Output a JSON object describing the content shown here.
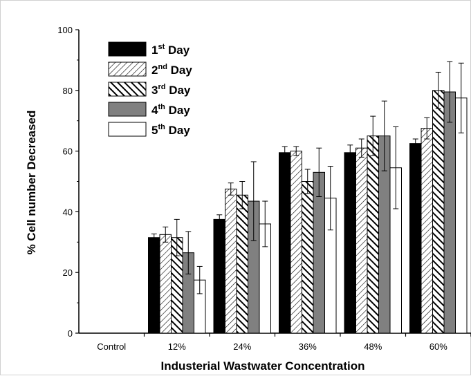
{
  "chart_data": {
    "type": "bar",
    "title": "",
    "xlabel": "Industerial Wastwater Concentration",
    "ylabel": "% Cell number Decreased",
    "ylim": [
      0,
      100
    ],
    "yticks": [
      "0",
      "20",
      "40",
      "60",
      "80",
      "100"
    ],
    "categories": [
      "Control",
      "12%",
      "24%",
      "36%",
      "48%",
      "60%"
    ],
    "legend_position": "top-left",
    "grid": false,
    "series": [
      {
        "name_base": "1",
        "name_sup": "st",
        "name_rest": " Day",
        "fill": "black",
        "values": [
          0,
          31.5,
          37.5,
          59.5,
          59.5,
          62.5
        ],
        "errors": [
          0,
          1.2,
          1.5,
          2.0,
          2.5,
          1.5
        ]
      },
      {
        "name_base": "2",
        "name_sup": "nd",
        "name_rest": " Day",
        "fill": "hatch-light",
        "values": [
          0,
          32.5,
          47.5,
          60,
          61,
          67.5
        ],
        "errors": [
          0,
          2.5,
          2.0,
          1.5,
          3.0,
          3.5
        ]
      },
      {
        "name_base": "3",
        "name_sup": "rd",
        "name_rest": " Day",
        "fill": "hatch-dark",
        "values": [
          0,
          31.5,
          45.5,
          50,
          65,
          80
        ],
        "errors": [
          0,
          6.0,
          4.5,
          4.0,
          6.5,
          6.0
        ]
      },
      {
        "name_base": "4",
        "name_sup": "th",
        "name_rest": " Day",
        "fill": "gray",
        "values": [
          0,
          26.5,
          43.5,
          53,
          65,
          79.5
        ],
        "errors": [
          0,
          7.0,
          13.0,
          8.0,
          11.5,
          10.0
        ]
      },
      {
        "name_base": "5",
        "name_sup": "th",
        "name_rest": " Day",
        "fill": "white",
        "values": [
          0,
          17.5,
          36,
          44.5,
          54.5,
          77.5
        ],
        "errors": [
          0,
          4.5,
          7.5,
          10.5,
          13.5,
          11.5
        ]
      }
    ],
    "colors": {
      "solid": "#000000",
      "gray": "#808080",
      "white": "#ffffff"
    }
  }
}
